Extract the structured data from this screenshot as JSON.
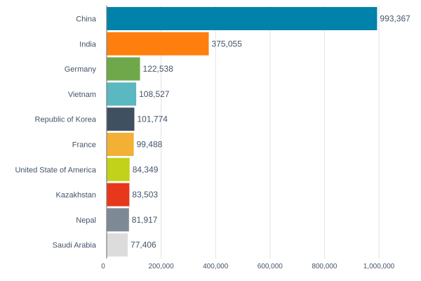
{
  "chart_data": {
    "type": "bar",
    "orientation": "horizontal",
    "categories": [
      "China",
      "India",
      "Germany",
      "Vietnam",
      "Republic of Korea",
      "France",
      "United State of America",
      "Kazakhstan",
      "Nepal",
      "Saudi Arabia"
    ],
    "values": [
      993367,
      375055,
      122538,
      108527,
      101774,
      99488,
      84349,
      83503,
      81917,
      77406
    ],
    "value_labels": [
      "993,367",
      "375,055",
      "122,538",
      "108,527",
      "101,774",
      "99,488",
      "84,349",
      "83,503",
      "81,917",
      "77,406"
    ],
    "colors": [
      "#0082aa",
      "#ff7f0e",
      "#6fa84a",
      "#5bb7c0",
      "#3f5060",
      "#f2b035",
      "#c2d11a",
      "#e8381b",
      "#7d8994",
      "#dcdcdc"
    ],
    "xlim": [
      0,
      1000000
    ],
    "ticks": [
      0,
      200000,
      400000,
      600000,
      800000,
      1000000
    ],
    "tick_labels": [
      "0",
      "200,000",
      "400,000",
      "600,000",
      "800,000",
      "1,000,000"
    ],
    "grid": true,
    "legend": "none"
  }
}
